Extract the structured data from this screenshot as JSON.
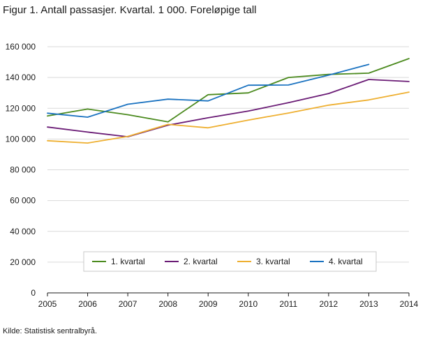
{
  "chart_data": {
    "type": "line",
    "title": "Figur 1. Antall passasjer. Kvartal. 1 000. Foreløpige tall",
    "x": [
      "2005",
      "2006",
      "2007",
      "2008",
      "2009",
      "2010",
      "2011",
      "2012",
      "2013",
      "2014"
    ],
    "y_ticks": [
      "0",
      "20 000",
      "40 000",
      "60 000",
      "80 000",
      "100 000",
      "120 000",
      "140 000",
      "160 000"
    ],
    "ylim": [
      0,
      160000
    ],
    "grid": "horizontal",
    "legend_position": "bottom-inside",
    "series": [
      {
        "name": "1. kvartal",
        "color": "#4b8a1e",
        "values": [
          115000,
          119500,
          115800,
          111200,
          128800,
          130000,
          140000,
          142000,
          142800,
          152300
        ]
      },
      {
        "name": "2. kvartal",
        "color": "#6a1b75",
        "values": [
          107800,
          104500,
          101500,
          109000,
          113800,
          118200,
          123600,
          129600,
          138700,
          137400
        ]
      },
      {
        "name": "3. kvartal",
        "color": "#eeaf30",
        "values": [
          98900,
          97400,
          101700,
          109500,
          107300,
          112300,
          116900,
          122000,
          125400,
          130500
        ]
      },
      {
        "name": "4. kvartal",
        "color": "#1a72c0",
        "values": [
          116800,
          114200,
          122600,
          125900,
          124800,
          135000,
          135100,
          141500,
          148500,
          null
        ]
      }
    ]
  },
  "source": "Kilde: Statistisk sentralbyrå."
}
